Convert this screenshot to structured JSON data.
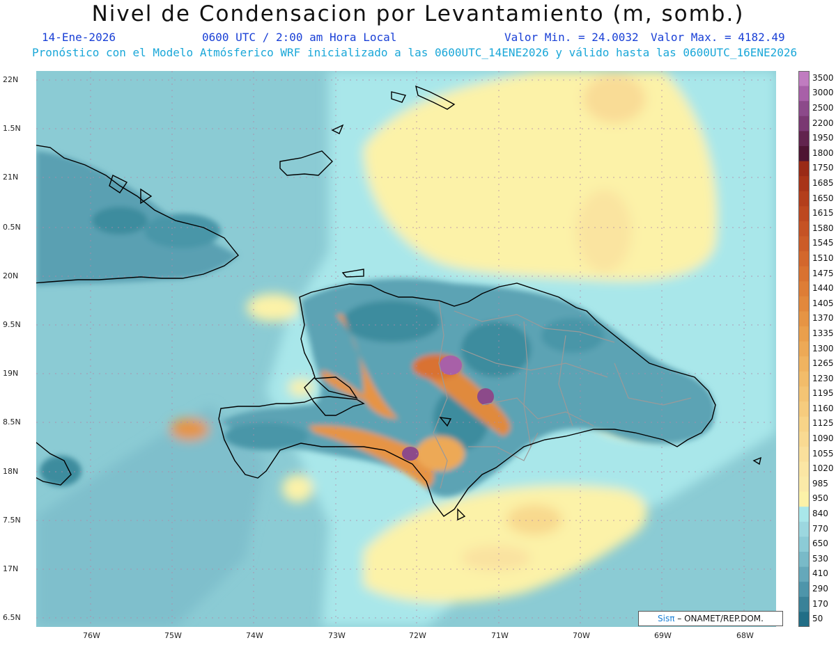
{
  "header": {
    "title": "Nivel de Condensacion por Levantamiento (m, somb.)",
    "date": "14-Ene-2026",
    "time": "0600 UTC / 2:00 am Hora Local",
    "valmin": "Valor Min. = 24.0032",
    "valmax": "Valor Max. = 4182.49",
    "forecast": "Pronóstico con el Modelo Atmósferico WRF inicializado a las 0600UTC_14ENE2026 y válido hasta las  0600UTC_16ENE2026"
  },
  "axes": {
    "lon_ticks": [
      "76W",
      "75W",
      "74W",
      "73W",
      "72W",
      "71W",
      "70W",
      "69W",
      "68W"
    ],
    "lat_ticks": [
      "22N",
      "1.5N",
      "21N",
      "0.5N",
      "20N",
      "9.5N",
      "19N",
      "8.5N",
      "18N",
      "7.5N",
      "17N",
      "6.5N"
    ]
  },
  "colorbar": {
    "labels": [
      "3500",
      "3000",
      "2500",
      "2200",
      "1950",
      "1800",
      "1750",
      "1685",
      "1650",
      "1615",
      "1580",
      "1545",
      "1510",
      "1475",
      "1440",
      "1405",
      "1370",
      "1335",
      "1300",
      "1265",
      "1230",
      "1195",
      "1160",
      "1125",
      "1090",
      "1055",
      "1020",
      "985",
      "950",
      "840",
      "770",
      "650",
      "530",
      "410",
      "290",
      "170",
      "50"
    ],
    "colors": [
      "#c07cc0",
      "#a860a8",
      "#8c4a8a",
      "#7a3872",
      "#62244e",
      "#4e1432",
      "#9a2a16",
      "#a83418",
      "#b33e1c",
      "#bd4820",
      "#c55224",
      "#cc5c28",
      "#d3672c",
      "#d97230",
      "#de7d36",
      "#e2883c",
      "#e69444",
      "#ea9f4c",
      "#eda956",
      "#f0b360",
      "#f2bc6a",
      "#f4c474",
      "#f6cc7e",
      "#f8d488",
      "#f9da92",
      "#fae09c",
      "#fbe6a4",
      "#fbeaa8",
      "#fcf2a8",
      "#a9e7ea",
      "#9cd7df",
      "#8ccbd6",
      "#79bac8",
      "#65a8ba",
      "#4e95aa",
      "#3a8298",
      "#226e86"
    ]
  },
  "credit": {
    "sis": "Sisπ",
    "org": "– ONAMET/REP.DOM."
  },
  "colors": {
    "water_base": "#8bcbd4",
    "land_dark": "#3e8c9e",
    "yellow": "#fcf2a8",
    "orange": "#e08a3c",
    "purple": "#a860a8",
    "coast": "#000000",
    "borders": "#9a9a9a"
  }
}
